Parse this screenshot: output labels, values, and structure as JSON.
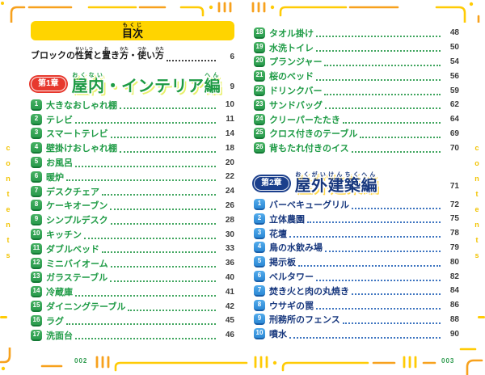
{
  "banner": {
    "title": "目次",
    "title_parts": [
      {
        "base": "目次",
        "ruby": "もくじ"
      }
    ]
  },
  "intro": {
    "label": "ブロックの性質と置き方・使い方",
    "title_parts": [
      {
        "base": "ブロックの",
        "ruby": ""
      },
      {
        "base": "性質",
        "ruby": "せいしつ"
      },
      {
        "base": "と",
        "ruby": ""
      },
      {
        "base": "置",
        "ruby": "お"
      },
      {
        "base": "き",
        "ruby": ""
      },
      {
        "base": "方",
        "ruby": "かた"
      },
      {
        "base": "・",
        "ruby": ""
      },
      {
        "base": "使",
        "ruby": "つか"
      },
      {
        "base": "い",
        "ruby": ""
      },
      {
        "base": "方",
        "ruby": "かた"
      }
    ],
    "page": "6"
  },
  "chapter1": {
    "badge": "第1章",
    "title": "屋内・インテリア編",
    "title_parts": [
      {
        "base": "屋内",
        "ruby": "おくない"
      },
      {
        "base": "・インテリア",
        "ruby": ""
      },
      {
        "base": "編",
        "ruby": "へん"
      }
    ],
    "page": "9"
  },
  "chapter2": {
    "badge": "第2章",
    "title": "屋外建築編",
    "title_parts": [
      {
        "base": "屋外建築",
        "ruby": "おくがいけんちく"
      },
      {
        "base": "編",
        "ruby": "へん"
      }
    ],
    "page": "71"
  },
  "toc_ch1_left": [
    {
      "num": "1",
      "label": "大きなおしゃれ棚",
      "page": "10"
    },
    {
      "num": "2",
      "label": "テレビ",
      "page": "11"
    },
    {
      "num": "3",
      "label": "スマートテレビ",
      "page": "14"
    },
    {
      "num": "4",
      "label": "壁掛けおしゃれ棚",
      "page": "18"
    },
    {
      "num": "5",
      "label": "お風呂",
      "page": "20"
    },
    {
      "num": "6",
      "label": "暖炉",
      "page": "22"
    },
    {
      "num": "7",
      "label": "デスクチェア",
      "page": "24"
    },
    {
      "num": "8",
      "label": "ケーキオーブン",
      "page": "26"
    },
    {
      "num": "9",
      "label": "シンプルデスク",
      "page": "28"
    },
    {
      "num": "10",
      "label": "キッチン",
      "page": "30"
    },
    {
      "num": "11",
      "label": "ダブルベッド",
      "page": "33"
    },
    {
      "num": "12",
      "label": "ミニバイオーム",
      "page": "36"
    },
    {
      "num": "13",
      "label": "ガラステーブル",
      "page": "40"
    },
    {
      "num": "14",
      "label": "冷蔵庫",
      "page": "41"
    },
    {
      "num": "15",
      "label": "ダイニングテーブル",
      "page": "42"
    },
    {
      "num": "16",
      "label": "ラグ",
      "page": "45"
    },
    {
      "num": "17",
      "label": "洗面台",
      "page": "46"
    }
  ],
  "toc_ch1_right": [
    {
      "num": "18",
      "label": "タオル掛け",
      "page": "48"
    },
    {
      "num": "19",
      "label": "水洗トイレ",
      "page": "50"
    },
    {
      "num": "20",
      "label": "プランジャー",
      "page": "54"
    },
    {
      "num": "21",
      "label": "桜のベッド",
      "page": "56"
    },
    {
      "num": "22",
      "label": "ドリンクバー",
      "page": "59"
    },
    {
      "num": "23",
      "label": "サンドバッグ",
      "page": "62"
    },
    {
      "num": "24",
      "label": "クリーパーたたき",
      "page": "64"
    },
    {
      "num": "25",
      "label": "クロス付きのテーブル",
      "page": "69"
    },
    {
      "num": "26",
      "label": "背もたれ付きのイス",
      "page": "70"
    }
  ],
  "toc_ch2": [
    {
      "num": "1",
      "label": "バーベキューグリル",
      "page": "72"
    },
    {
      "num": "2",
      "label": "立体農園",
      "page": "75"
    },
    {
      "num": "3",
      "label": "花壇",
      "page": "78"
    },
    {
      "num": "4",
      "label": "鳥の水飲み場",
      "page": "79"
    },
    {
      "num": "5",
      "label": "掲示板",
      "page": "80"
    },
    {
      "num": "6",
      "label": "ベルタワー",
      "page": "82"
    },
    {
      "num": "7",
      "label": "焚き火と肉の丸焼き",
      "page": "84"
    },
    {
      "num": "8",
      "label": "ウサギの罠",
      "page": "86"
    },
    {
      "num": "9",
      "label": "刑務所のフェンス",
      "page": "88"
    },
    {
      "num": "10",
      "label": "噴水",
      "page": "90"
    }
  ],
  "side_labels": {
    "left": "contents",
    "right": "contents"
  },
  "footer": {
    "left_page": "002",
    "right_page": "003"
  },
  "colors": {
    "banner_yellow": "#FFD400",
    "chapter1_green": "#1E9B45",
    "chapter1_badge_red": "#E7382D",
    "chapter2_navy": "#18387E",
    "chapter2_badge_blue": "#2C89D5",
    "decor_yellow": "#FFCB05",
    "decor_orange": "#F7A11D",
    "page_number_gray": "#3B3B3B",
    "footer_green": "#2E9B4E"
  }
}
